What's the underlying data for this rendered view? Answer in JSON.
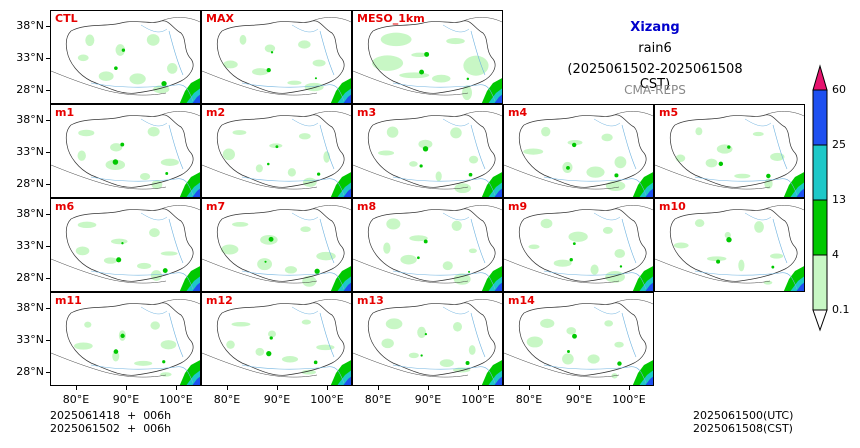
{
  "title": {
    "region": "Xizang",
    "variable": "rain6",
    "period": "(2025061502-2025061508 CST)",
    "source": "CMA-REPS"
  },
  "colors": {
    "title_region": "#0000cc",
    "panel_label": "#e60000",
    "source_text": "#888888"
  },
  "panels": [
    {
      "label": "CTL"
    },
    {
      "label": "MAX"
    },
    {
      "label": "MESO_1km"
    },
    {
      "label": "m1"
    },
    {
      "label": "m2"
    },
    {
      "label": "m3"
    },
    {
      "label": "m4"
    },
    {
      "label": "m5"
    },
    {
      "label": "m6"
    },
    {
      "label": "m7"
    },
    {
      "label": "m8"
    },
    {
      "label": "m9"
    },
    {
      "label": "m10"
    },
    {
      "label": "m11"
    },
    {
      "label": "m12"
    },
    {
      "label": "m13"
    },
    {
      "label": "m14"
    }
  ],
  "y_ticks": [
    "38°N",
    "33°N",
    "28°N"
  ],
  "x_ticks": [
    "80°E",
    "90°E",
    "100°E"
  ],
  "colorbar": {
    "levels": [
      "0.1",
      "4",
      "13",
      "25",
      "60"
    ],
    "colors": [
      "#ffffff",
      "#c8f7c5",
      "#00c800",
      "#1ec8c8",
      "#1e50f0",
      "#e6146e"
    ]
  },
  "footer": {
    "left_line1": "2025061418  +  006h",
    "left_line2": "2025061502  +  006h",
    "right_line1": "2025061500(UTC)",
    "right_line2": "2025061508(CST)"
  }
}
